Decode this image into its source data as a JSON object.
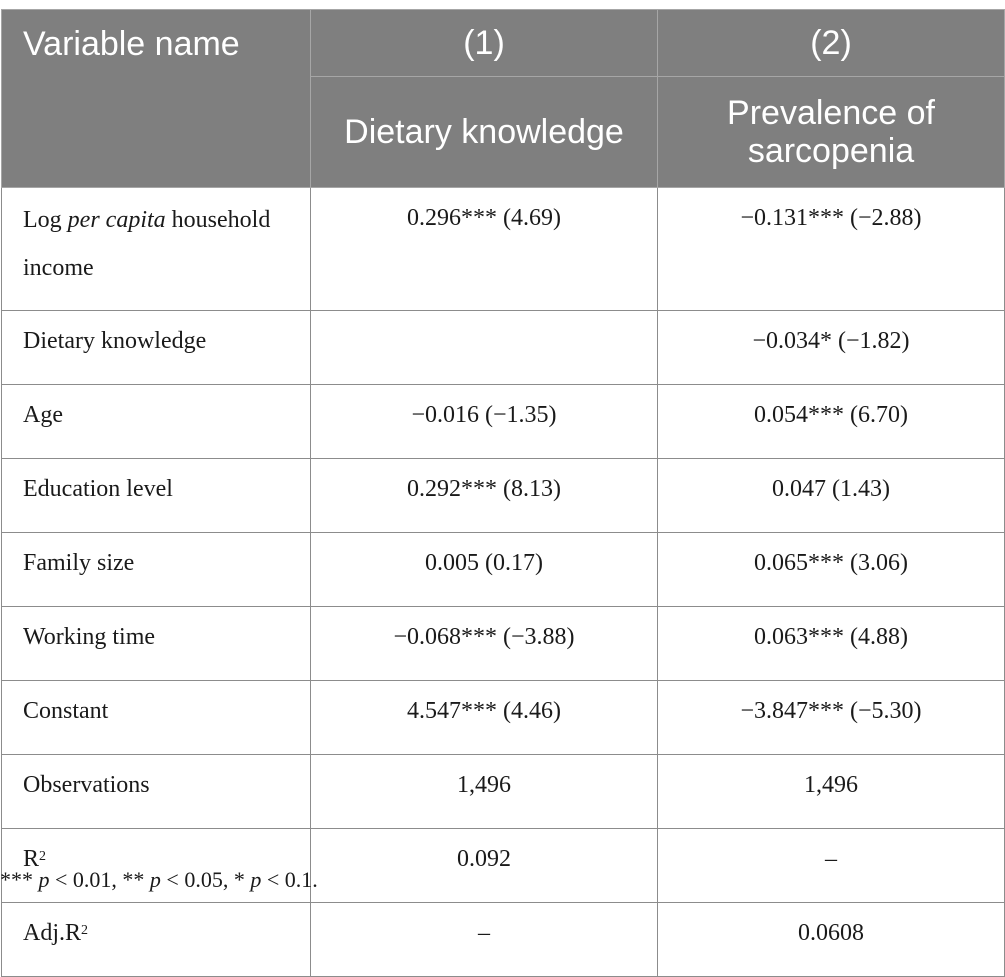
{
  "header": {
    "variable_name": "Variable name",
    "col1_number": "(1)",
    "col2_number": "(2)",
    "col1_dependent": "Dietary knowledge",
    "col2_dependent": "Prevalence of sarcopenia"
  },
  "rows": [
    {
      "label_prefix": "Log ",
      "label_italic": "per capita",
      "label_suffix": " household income",
      "col1": "0.296*** (4.69)",
      "col2": "−0.131*** (−2.88)"
    },
    {
      "label": "Dietary knowledge",
      "col1": "",
      "col2": "−0.034* (−1.82)"
    },
    {
      "label": "Age",
      "col1": "−0.016 (−1.35)",
      "col2": "0.054*** (6.70)"
    },
    {
      "label": "Education level",
      "col1": "0.292*** (8.13)",
      "col2": "0.047 (1.43)"
    },
    {
      "label": "Family size",
      "col1": "0.005 (0.17)",
      "col2": "0.065*** (3.06)"
    },
    {
      "label": "Working time",
      "col1": "−0.068*** (−3.88)",
      "col2": "0.063*** (4.88)"
    },
    {
      "label": "Constant",
      "col1": "4.547*** (4.46)",
      "col2": "−3.847*** (−5.30)"
    },
    {
      "label": "Observations",
      "col1": "1,496",
      "col2": "1,496"
    },
    {
      "label": "R",
      "label_sup": "2",
      "col1": "0.092",
      "col2": "–"
    },
    {
      "label": "Adj.R",
      "label_sup": "2",
      "col1": "–",
      "col2": "0.0608"
    }
  ],
  "footnote": {
    "s1": "*** ",
    "p1": "p",
    "t1": " < 0.01, ** ",
    "p2": "p",
    "t2": " < 0.05, * ",
    "p3": "p",
    "t3": " < 0.1."
  }
}
